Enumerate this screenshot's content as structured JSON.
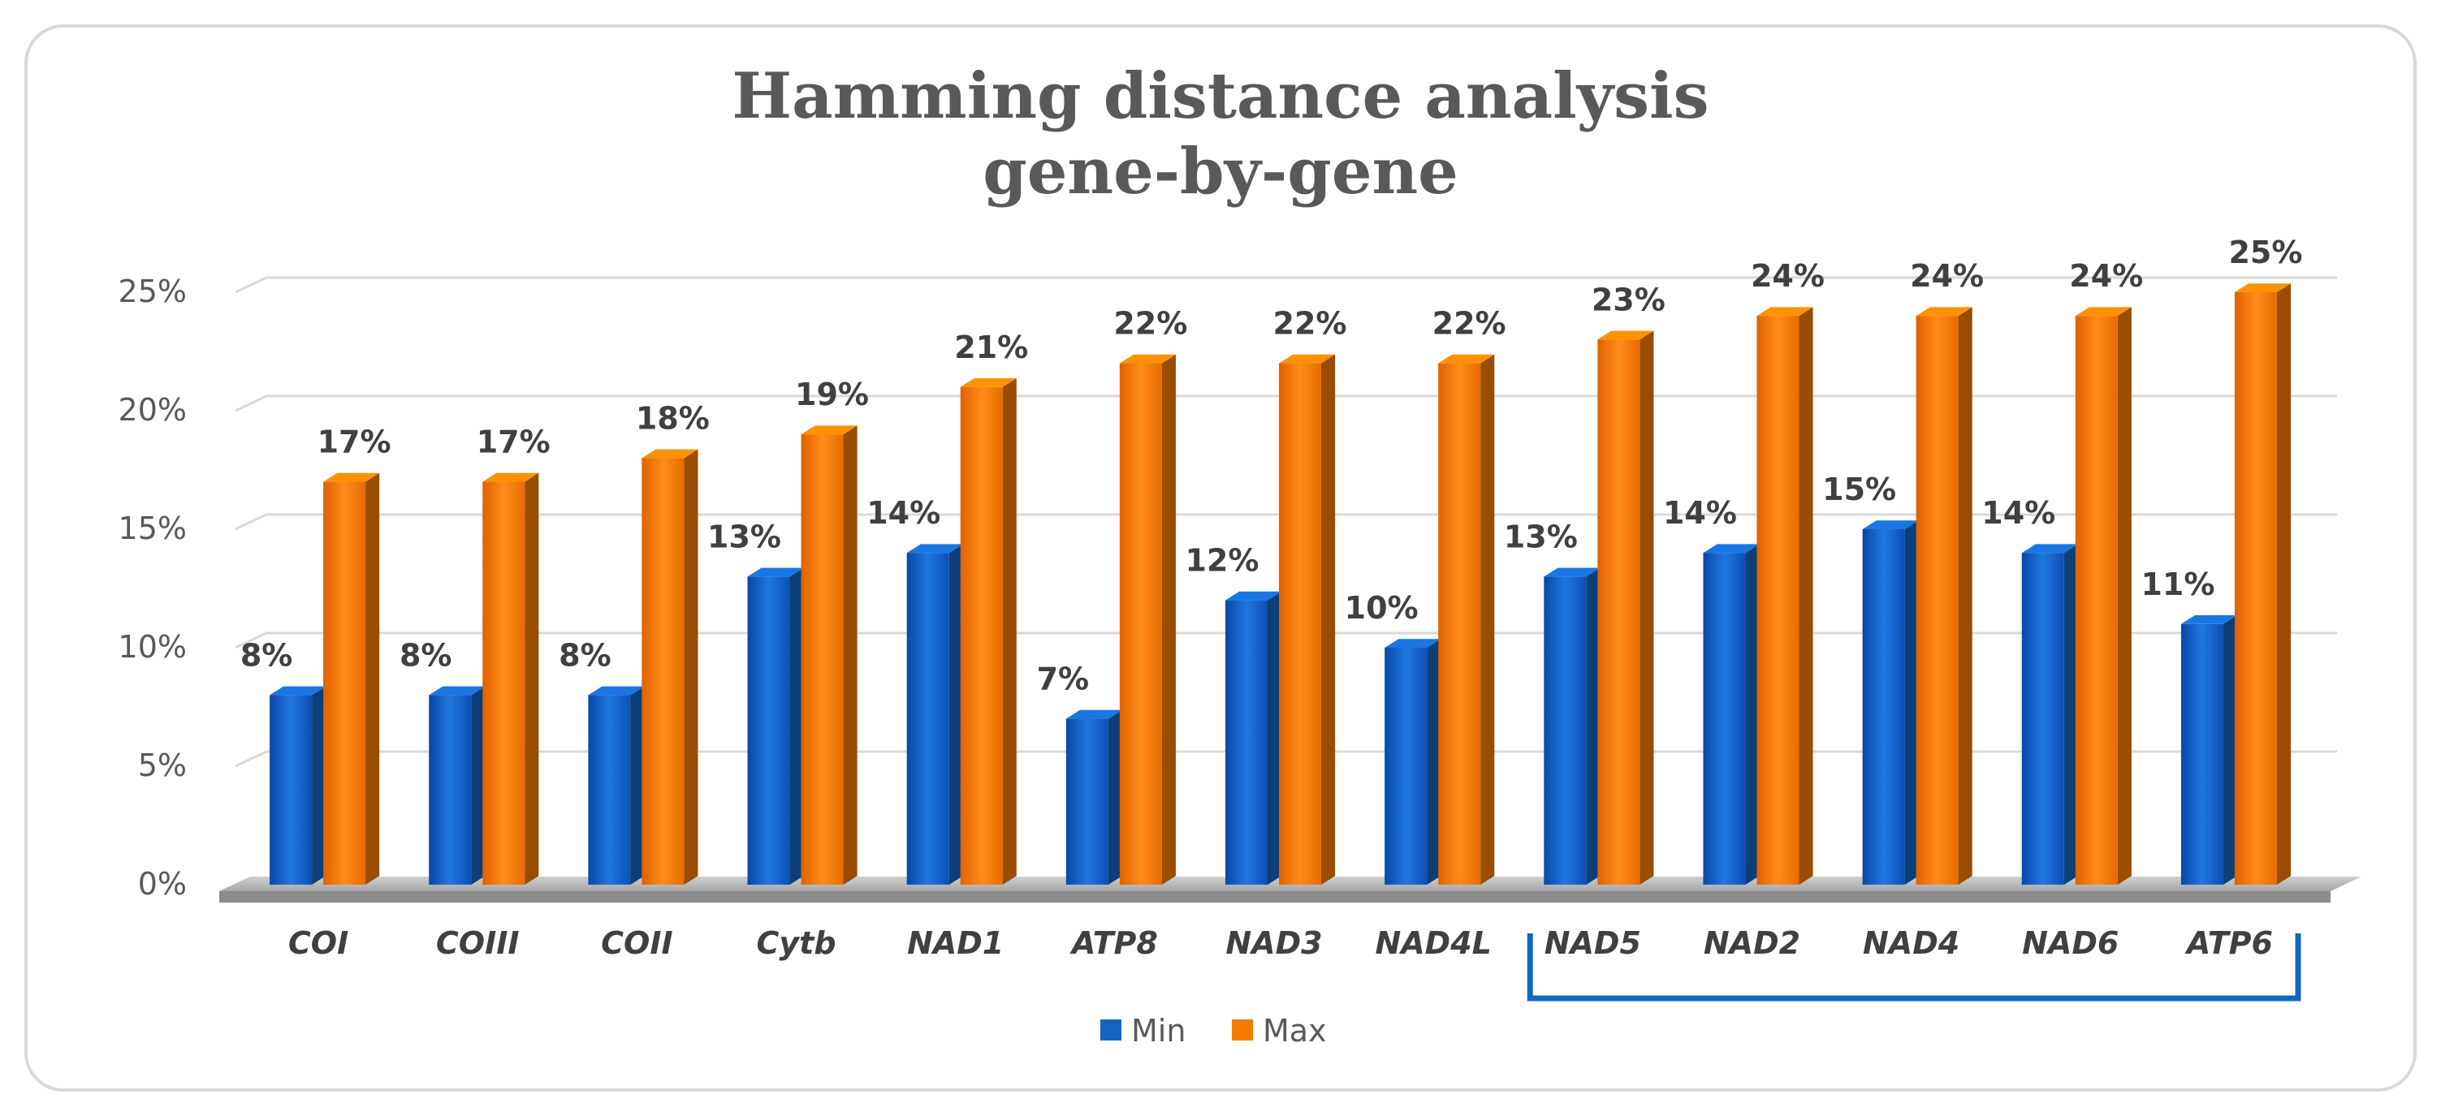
{
  "chart_data": {
    "type": "bar",
    "title": "Hamming distance analysis gene-by-gene",
    "title_lines": [
      "Hamming distance analysis",
      "gene-by-gene"
    ],
    "categories": [
      "COI",
      "COIII",
      "COII",
      "Cytb",
      "NAD1",
      "ATP8",
      "NAD3",
      "NAD4L",
      "NAD5",
      "NAD2",
      "NAD4",
      "NAD6",
      "ATP6"
    ],
    "series": [
      {
        "name": "Min",
        "values": [
          8,
          8,
          8,
          13,
          14,
          7,
          12,
          10,
          13,
          14,
          15,
          14,
          11
        ],
        "labels": [
          "8%",
          "8%",
          "8%",
          "13%",
          "14%",
          "7%",
          "12%",
          "10%",
          "13%",
          "14%",
          "15%",
          "14%",
          "11%"
        ],
        "color": "#1565c0"
      },
      {
        "name": "Max",
        "values": [
          17,
          17,
          18,
          19,
          21,
          22,
          22,
          22,
          23,
          24,
          24,
          24,
          25
        ],
        "labels": [
          "17%",
          "17%",
          "18%",
          "19%",
          "21%",
          "22%",
          "22%",
          "22%",
          "23%",
          "24%",
          "24%",
          "24%",
          "25%"
        ],
        "color": "#f57c00"
      }
    ],
    "y_ticks": [
      "0%",
      "5%",
      "10%",
      "15%",
      "20%",
      "25%"
    ],
    "ylim": [
      0,
      25
    ],
    "grid": true,
    "legend": "bottom",
    "xlabel": "",
    "ylabel": "",
    "bracket_categories": [
      "NAD5",
      "ATP6"
    ],
    "bracket_color": "#1565c0"
  }
}
